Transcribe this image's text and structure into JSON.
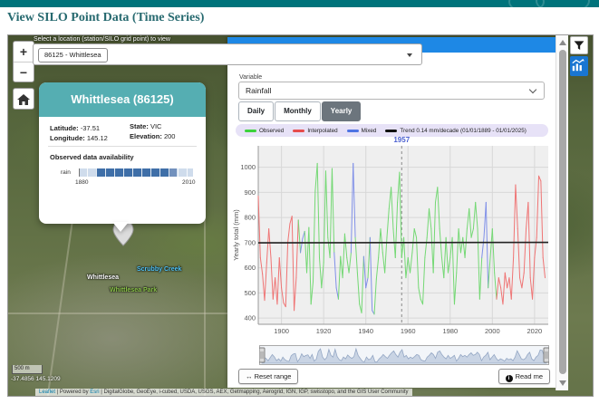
{
  "header": {
    "title": "View SILO Point Data (Time Series)"
  },
  "map": {
    "zoom_in": "+",
    "zoom_out": "−",
    "select_label": "Select a location (station/SILO grid point) to view",
    "selected_station": "86125 - Whittlesea",
    "popup": {
      "title": "Whittlesea (86125)",
      "latitude_label": "Latitude:",
      "latitude": "-37.51",
      "longitude_label": "Longitude:",
      "longitude": "145.12",
      "state_label": "State:",
      "state": "VIC",
      "elevation_label": "Elevation:",
      "elevation": "200",
      "availability_heading": "Observed data availability",
      "availability_variable": "rain",
      "availability_start": "1880",
      "availability_end": "2010",
      "availability_segments": [
        {
          "color": "#cfdcec",
          "pct": 14.5
        },
        {
          "color": "#3f6fa8",
          "pct": 64.5
        },
        {
          "color": "#7291bd",
          "pct": 6.5
        },
        {
          "color": "#cfdcec",
          "pct": 14.5
        }
      ]
    },
    "labels": {
      "town": "Whittlesea",
      "creek": "Scrubby Creek",
      "park": "Whittlesea Park"
    },
    "scale_text": "500 m",
    "coordinates": "-37.4856 145.1209",
    "attribution": {
      "link1": "Leaflet",
      "sep1": " | Powered by ",
      "link2": "Esri",
      "rest": " | DigitalGlobe, GeoEye, i-cubed, USDA, USGS, AEX, Getmapping, Aerogrid, IGN, IGP, swisstopo, and the GIS User Community"
    }
  },
  "panel": {
    "variable_label": "Variable",
    "variable_value": "Rainfall",
    "tabs": [
      {
        "label": "Daily",
        "active": false
      },
      {
        "label": "Monthly",
        "active": false
      },
      {
        "label": "Yearly",
        "active": true
      }
    ],
    "legend": [
      {
        "label": "Observed",
        "color": "#3cd23c"
      },
      {
        "label": "Interpolated",
        "color": "#e64c4c"
      },
      {
        "label": "Mixed",
        "color": "#4f74e3"
      },
      {
        "label": "Trend 0.14 mm/decade (01/01/1889 - 01/01/2025)",
        "color": "#111111"
      }
    ],
    "reset_button": "Reset range",
    "readme_button": "Read me"
  },
  "chart_data": {
    "type": "line",
    "ylabel": "Yearly total (mm)",
    "y_ticks": [
      400,
      500,
      600,
      700,
      800,
      900,
      1000
    ],
    "x_ticks": [
      1900,
      1920,
      1940,
      1960,
      1980,
      2000,
      2020
    ],
    "x_range": [
      1889,
      2026.5
    ],
    "y_range": [
      375,
      1085
    ],
    "grid": true,
    "annotation": {
      "year": 1957,
      "label": "1957"
    },
    "trend": {
      "label": "Trend 0.14 mm/decade (01/01/1889 - 01/01/2025)",
      "value_start": 699,
      "value_end": 701,
      "color": "#222222"
    },
    "series_colors": {
      "o": "#74d874",
      "i": "#ef7474",
      "m": "#8090e8"
    },
    "start_year": 1889,
    "types": "iiiiiiiiiiiiiiiiiiiiommoooooooooooooommoooooommoooommommooooooooooooooooooooooooooooooooooooooooooooooooooommmooooiiiiiiiiiiiiiiiiiiiiiii",
    "values": [
      885,
      640,
      575,
      470,
      620,
      755,
      640,
      475,
      560,
      455,
      640,
      520,
      460,
      445,
      700,
      775,
      805,
      430,
      560,
      790,
      660,
      715,
      745,
      580,
      760,
      455,
      545,
      905,
      1015,
      640,
      520,
      620,
      985,
      720,
      640,
      995,
      660,
      520,
      475,
      645,
      560,
      735,
      640,
      580,
      660,
      1015,
      720,
      580,
      455,
      420,
      645,
      520,
      560,
      720,
      430,
      415,
      555,
      640,
      755,
      660,
      580,
      720,
      835,
      920,
      755,
      640,
      860,
      980,
      640,
      720,
      560,
      640,
      580,
      660,
      755,
      720,
      520,
      475,
      455,
      640,
      720,
      835,
      755,
      580,
      860,
      920,
      755,
      640,
      560,
      720,
      580,
      640,
      720,
      455,
      580,
      755,
      660,
      720,
      640,
      755,
      835,
      720,
      755,
      860,
      755,
      475,
      640,
      720,
      860,
      520,
      640,
      755,
      580,
      475,
      560,
      520,
      455,
      580,
      520,
      560,
      475,
      640,
      930,
      755,
      560,
      520,
      580,
      755,
      860,
      560,
      475,
      640,
      720,
      965,
      945,
      640,
      560
    ]
  }
}
